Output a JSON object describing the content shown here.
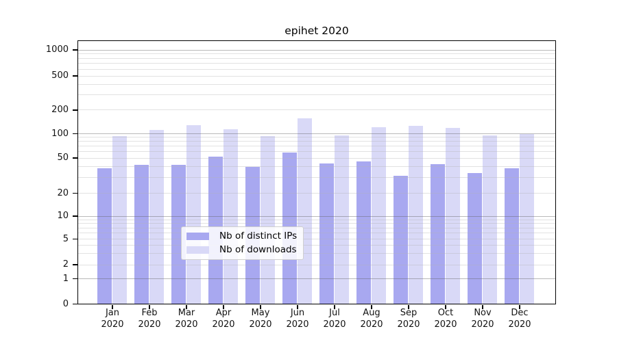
{
  "title": "epihet 2020",
  "chart_data": {
    "type": "bar",
    "title": "epihet 2020",
    "categories": [
      "Jan 2020",
      "Feb 2020",
      "Mar 2020",
      "Apr 2020",
      "May 2020",
      "Jun 2020",
      "Jul 2020",
      "Aug 2020",
      "Sep 2020",
      "Oct 2020",
      "Nov 2020",
      "Dec 2020"
    ],
    "series": [
      {
        "name": "Nb of distinct IPs",
        "color": "#a8a8f0",
        "values": [
          39,
          42,
          42,
          53,
          40,
          59,
          44,
          46,
          32,
          43,
          34,
          39
        ]
      },
      {
        "name": "Nb of downloads",
        "color": "#d9d9f7",
        "values": [
          95,
          113,
          130,
          115,
          94,
          160,
          96,
          122,
          127,
          120,
          96,
          100
        ]
      }
    ],
    "xlabel": "",
    "ylabel": "",
    "yscale": "log (with 0 baseline)",
    "y_tick_labels": [
      "0",
      "1",
      "2",
      "5",
      "10",
      "20",
      "50",
      "100",
      "200",
      "500",
      "1000"
    ],
    "ylim": [
      0,
      1300
    ],
    "grid": true,
    "legend_position": "lower center, inside plot"
  }
}
